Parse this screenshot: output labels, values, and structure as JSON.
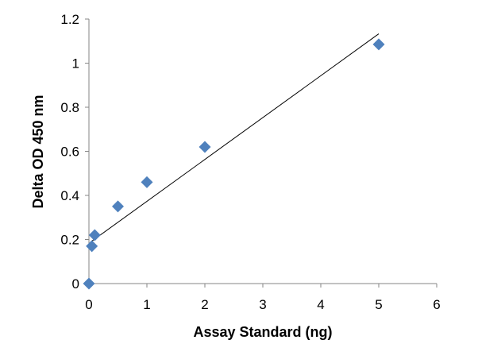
{
  "chart_data": {
    "type": "scatter",
    "title": "",
    "xlabel": "Assay Standard (ng)",
    "ylabel": "Delta OD 450 nm",
    "xlim": [
      0,
      6
    ],
    "ylim": [
      0,
      1.2
    ],
    "x_ticks": [
      0,
      1,
      2,
      3,
      4,
      5,
      6
    ],
    "x_tick_labels": [
      "0",
      "1",
      "2",
      "3",
      "4",
      "5",
      "6"
    ],
    "y_ticks": [
      0,
      0.2,
      0.4,
      0.6,
      0.8,
      1.0,
      1.2
    ],
    "y_tick_labels": [
      "0",
      "0.2",
      "0.4",
      "0.6",
      "0.8",
      "1",
      "1.2"
    ],
    "grid": false,
    "legend": "none",
    "series": [
      {
        "marker": "diamond",
        "color": "#4F81BD",
        "points": [
          {
            "x": 0,
            "y": 0
          },
          {
            "x": 0.05,
            "y": 0.17
          },
          {
            "x": 0.1,
            "y": 0.22
          },
          {
            "x": 0.5,
            "y": 0.35
          },
          {
            "x": 1,
            "y": 0.46
          },
          {
            "x": 2,
            "y": 0.62
          },
          {
            "x": 5,
            "y": 1.085
          }
        ]
      }
    ],
    "trendline": {
      "type": "linear",
      "color": "#000000",
      "x_range": [
        0.05,
        5
      ],
      "slope": 0.19,
      "intercept": 0.183
    }
  }
}
